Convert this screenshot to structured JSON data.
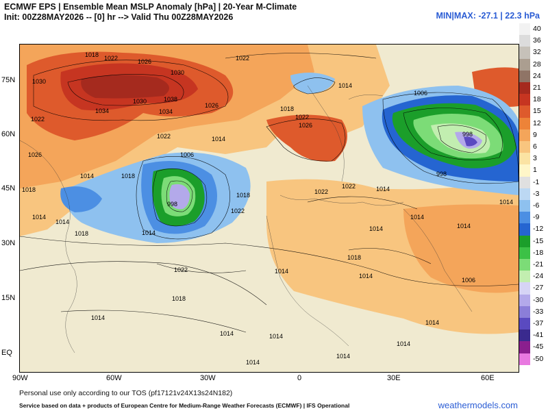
{
  "header": {
    "title_line1": "ECMWF EPS | Ensemble Mean MSLP Anomaly [hPa] | 20-Year M-Climate",
    "title_line2": "Init: 00Z28MAY2026 -- [0] hr --> Valid Thu 00Z28MAY2026",
    "minmax": "MIN|MAX: -27.1 | 22.3 hPa"
  },
  "map": {
    "lat_labels": [
      "75N",
      "60N",
      "45N",
      "30N",
      "15N",
      "EQ"
    ],
    "lon_labels": [
      "90W",
      "60W",
      "30W",
      "0",
      "30E",
      "60E"
    ],
    "isobar_labels": [
      "1018",
      "1022",
      "1026",
      "1030",
      "1030",
      "1038",
      "1034",
      "1030",
      "1034",
      "1026",
      "1022",
      "1022",
      "1026",
      "1022",
      "1018",
      "1014",
      "1014",
      "1006",
      "1006",
      "998",
      "998",
      "1014",
      "1018",
      "1018",
      "1014",
      "1014",
      "1018",
      "1022",
      "1022",
      "1018",
      "1014",
      "1014",
      "1014",
      "1014",
      "1014",
      "1014",
      "1018",
      "1014",
      "1014",
      "1006",
      "1014",
      "1014",
      "1022",
      "1014",
      "1026",
      "1018",
      "1014",
      "1022",
      "1014",
      "1014",
      "1014",
      "1022",
      "998"
    ]
  },
  "colorbar": {
    "labels": [
      "40",
      "36",
      "32",
      "28",
      "24",
      "21",
      "18",
      "15",
      "12",
      "9",
      "6",
      "3",
      "1",
      "-1",
      "-3",
      "-6",
      "-9",
      "-12",
      "-15",
      "-18",
      "-21",
      "-24",
      "-27",
      "-30",
      "-33",
      "-37",
      "-41",
      "-45",
      "-50"
    ],
    "colors": [
      "#f2f2f2",
      "#dcdcdc",
      "#c6c1b9",
      "#ab9e90",
      "#8f7466",
      "#a52a1e",
      "#c63521",
      "#de5a2c",
      "#ed8338",
      "#f4a55a",
      "#f8c57f",
      "#fbe3a3",
      "#fff6c8",
      "#e0e0e0",
      "#bcd8f3",
      "#8ec1ef",
      "#4c8fe3",
      "#2565d1",
      "#1b9e2a",
      "#3cc146",
      "#7cdc77",
      "#c2eeb0",
      "#d6d4f5",
      "#b3a9ea",
      "#8b7ed8",
      "#5a4ac0",
      "#3a2a8e",
      "#8a1f8e",
      "#e879e0"
    ]
  },
  "footer": {
    "tos": "Personal use only according to our TOS (pf17121v24X13s24N182)",
    "service": "Service based on data + products of European Centre for Medium-Range Weather Forecasts (ECMWF) | IFS Operational",
    "brand": "weathermodels.com"
  }
}
